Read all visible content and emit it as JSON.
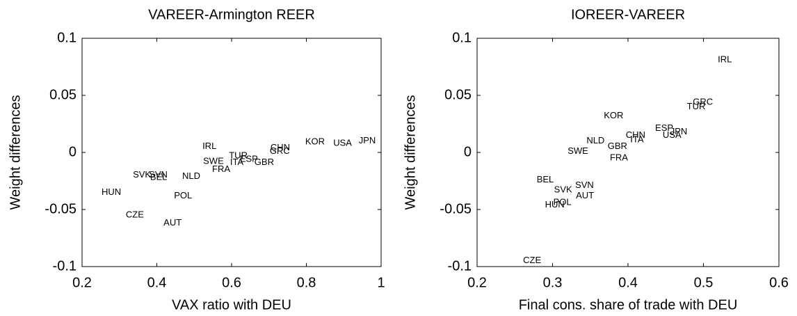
{
  "chart_data": [
    {
      "type": "scatter",
      "title": "VAREER-Armington REER",
      "xlabel": "VAX ratio with DEU",
      "ylabel": "Weight differences",
      "xlim": [
        0.2,
        1
      ],
      "xticks": [
        0.2,
        0.4,
        0.6,
        0.8,
        1
      ],
      "ylim": [
        -0.1,
        0.1
      ],
      "yticks": [
        -0.1,
        -0.05,
        0,
        0.05,
        0.1
      ],
      "labels": [
        "IRL",
        "SWE",
        "TUR",
        "ESP",
        "ITA",
        "FRA",
        "GBR",
        "CHN",
        "GRC",
        "KOR",
        "USA",
        "JPN",
        "NLD",
        "SVK",
        "SVN",
        "BEL",
        "HUN",
        "POL",
        "CZE",
        "AUT"
      ],
      "x": [
        0.522,
        0.524,
        0.593,
        0.622,
        0.596,
        0.548,
        0.661,
        0.704,
        0.702,
        0.797,
        0.872,
        0.94,
        0.468,
        0.336,
        0.379,
        0.382,
        0.252,
        0.446,
        0.317,
        0.418
      ],
      "y": [
        0.005,
        -0.008,
        -0.003,
        -0.006,
        -0.009,
        -0.015,
        -0.009,
        0.004,
        0.001,
        0.009,
        0.008,
        0.01,
        -0.021,
        -0.02,
        -0.02,
        -0.022,
        -0.035,
        -0.038,
        -0.055,
        -0.062
      ]
    },
    {
      "type": "scatter",
      "title": "IOREER-VAREER",
      "xlabel": "Final cons. share of trade with DEU",
      "ylabel": "Weight differences",
      "xlim": [
        0.2,
        0.6
      ],
      "xticks": [
        0.2,
        0.3,
        0.4,
        0.5,
        0.6
      ],
      "ylim": [
        -0.1,
        0.1
      ],
      "yticks": [
        -0.1,
        -0.05,
        0,
        0.05,
        0.1
      ],
      "labels": [
        "IRL",
        "GRC",
        "TUR",
        "KOR",
        "ESP",
        "JPN",
        "USA",
        "CHN",
        "ITA",
        "NLD",
        "GBR",
        "SWE",
        "FRA",
        "BEL",
        "SVN",
        "SVK",
        "AUT",
        "POL",
        "HUN",
        "CZE"
      ],
      "x": [
        0.519,
        0.486,
        0.478,
        0.368,
        0.436,
        0.456,
        0.446,
        0.397,
        0.403,
        0.345,
        0.373,
        0.32,
        0.376,
        0.279,
        0.33,
        0.302,
        0.331,
        0.301,
        0.29,
        0.261
      ],
      "y": [
        0.081,
        0.044,
        0.04,
        0.032,
        0.021,
        0.018,
        0.015,
        0.015,
        0.011,
        0.01,
        0.005,
        0.001,
        -0.005,
        -0.024,
        -0.029,
        -0.033,
        -0.038,
        -0.044,
        -0.046,
        -0.095
      ]
    }
  ]
}
